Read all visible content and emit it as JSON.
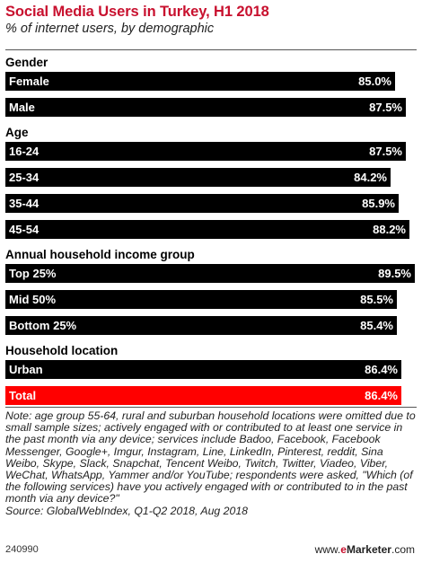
{
  "header": {
    "title": "Social Media Users in Turkey, H1 2018",
    "subtitle": "% of internet users, by demographic"
  },
  "chart_data": {
    "type": "bar",
    "orientation": "horizontal",
    "xlim": [
      0,
      100
    ],
    "unit": "%",
    "colors": {
      "bar": "#000000",
      "total": "#ff0000",
      "label": "#ffffff"
    },
    "groups": [
      {
        "name": "Gender",
        "items": [
          {
            "label": "Female",
            "value": 85.0,
            "text": "85.0%"
          },
          {
            "label": "Male",
            "value": 87.5,
            "text": "87.5%"
          }
        ]
      },
      {
        "name": "Age",
        "items": [
          {
            "label": "16-24",
            "value": 87.5,
            "text": "87.5%"
          },
          {
            "label": "25-34",
            "value": 84.2,
            "text": "84.2%"
          },
          {
            "label": "35-44",
            "value": 85.9,
            "text": "85.9%"
          },
          {
            "label": "45-54",
            "value": 88.2,
            "text": "88.2%"
          }
        ]
      },
      {
        "name": "Annual household income group",
        "items": [
          {
            "label": "Top 25%",
            "value": 89.5,
            "text": "89.5%"
          },
          {
            "label": "Mid 50%",
            "value": 85.5,
            "text": "85.5%"
          },
          {
            "label": "Bottom 25%",
            "value": 85.4,
            "text": "85.4%"
          }
        ]
      },
      {
        "name": "Household location",
        "items": [
          {
            "label": "Urban",
            "value": 86.4,
            "text": "86.4%"
          },
          {
            "label": "Total",
            "value": 86.4,
            "text": "86.4%",
            "highlight": true
          }
        ]
      }
    ]
  },
  "footer": {
    "note": "Note: age group 55-64, rural and suburban household locations were omitted due to small sample sizes; actively engaged with or contributed to at least one service in the past month via any device; services include Badoo, Facebook, Facebook Messenger, Google+, Imgur, Instagram, Line, LinkedIn, Pinterest, reddit, Sina Weibo, Skype, Slack, Snapchat, Tencent Weibo, Twitch, Twitter, Viadeo, Viber, WeChat, WhatsApp, Yammer and/or YouTube; respondents were asked, \"Which (of the following services) have you actively engaged with or contributed to in the past month via any device?\"",
    "source": "Source: GlobalWebIndex, Q1-Q2 2018, Aug 2018",
    "code": "240990",
    "brand_prefix": "www.",
    "brand_e": "e",
    "brand_name": "Marketer",
    "brand_suffix": ".com"
  }
}
